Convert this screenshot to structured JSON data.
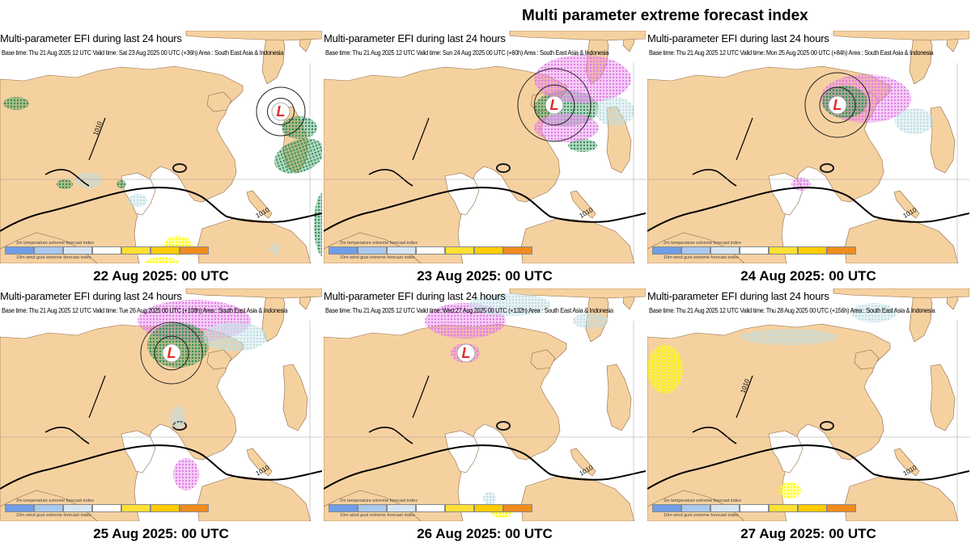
{
  "title": "Multi parameter extreme forecast index",
  "colors": {
    "land": "#f6d1a0",
    "sea": "#ffffff",
    "coast": "#1a1a1a",
    "green": "#2f8f55",
    "magenta": "#e27be6",
    "lightblue": "#bcdde2",
    "yellow": "#ffff00",
    "isobar": "#000000",
    "lowRed": "#e32c2c"
  },
  "legend": {
    "label_top": "2m temperature extreme forecast index",
    "label_bottom": "10m wind gust extreme forecast index",
    "swatches": [
      "#6f9ee8",
      "#a8c9ef",
      "#d7e6f3",
      "#ffffff",
      "#ffe033",
      "#ffcc00",
      "#f08c1e"
    ]
  },
  "panels": [
    {
      "heading": "Multi-parameter EFI during last 24 hours",
      "subtitle": "Base time: Thu 21 Aug 2025 12 UTC Valid time: Sat 23 Aug 2025 00 UTC (+36h) Area : South East Asia & Indonesia",
      "caption": "22 Aug 2025: 00 UTC",
      "low_label": "L",
      "isobar_labels": [
        "1010",
        "1010"
      ]
    },
    {
      "heading": "Multi-parameter EFI during last 24 hours",
      "subtitle": "Base time: Thu 21 Aug 2025 12 UTC Valid time: Sun 24 Aug 2025 00 UTC (+60h) Area : South East Asia & Indonesia",
      "caption": "23 Aug 2025: 00 UTC",
      "low_label": "L",
      "isobar_labels": [
        "1010"
      ]
    },
    {
      "heading": "Multi-parameter EFI during last 24 hours",
      "subtitle": "Base time: Thu 21 Aug 2025 12 UTC Valid time: Mon 25 Aug 2025 00 UTC (+84h) Area : South East Asia & Indonesia",
      "caption": "24 Aug 2025: 00 UTC",
      "low_label": "L",
      "isobar_labels": [
        "1010"
      ]
    },
    {
      "heading": "Multi-parameter EFI during last 24 hours",
      "subtitle": "Base time: Thu 21 Aug 2025 12 UTC Valid time: Tue 26 Aug 2025 00 UTC (+108h) Area : South East Asia & Indonesia",
      "caption": "25 Aug 2025: 00 UTC",
      "low_label": "L",
      "isobar_labels": [
        "1010"
      ]
    },
    {
      "heading": "Multi-parameter EFI during last 24 hours",
      "subtitle": "Base time: Thu 21 Aug 2025 12 UTC Valid time: Wed 27 Aug 2025 00 UTC (+132h) Area : South East Asia & Indonesia",
      "caption": "26 Aug 2025: 00 UTC",
      "low_label": "L",
      "isobar_labels": [
        "1010"
      ]
    },
    {
      "heading": "Multi-parameter EFI during last 24 hours",
      "subtitle": "Base time: Thu 21 Aug 2025 12 UTC Valid time: Thu 28 Aug 2025 00 UTC (+156h) Area : South East Asia & Indonesia",
      "caption": "27 Aug 2025: 00 UTC",
      "low_label": "",
      "isobar_labels": [
        "1010",
        "1010"
      ]
    }
  ]
}
